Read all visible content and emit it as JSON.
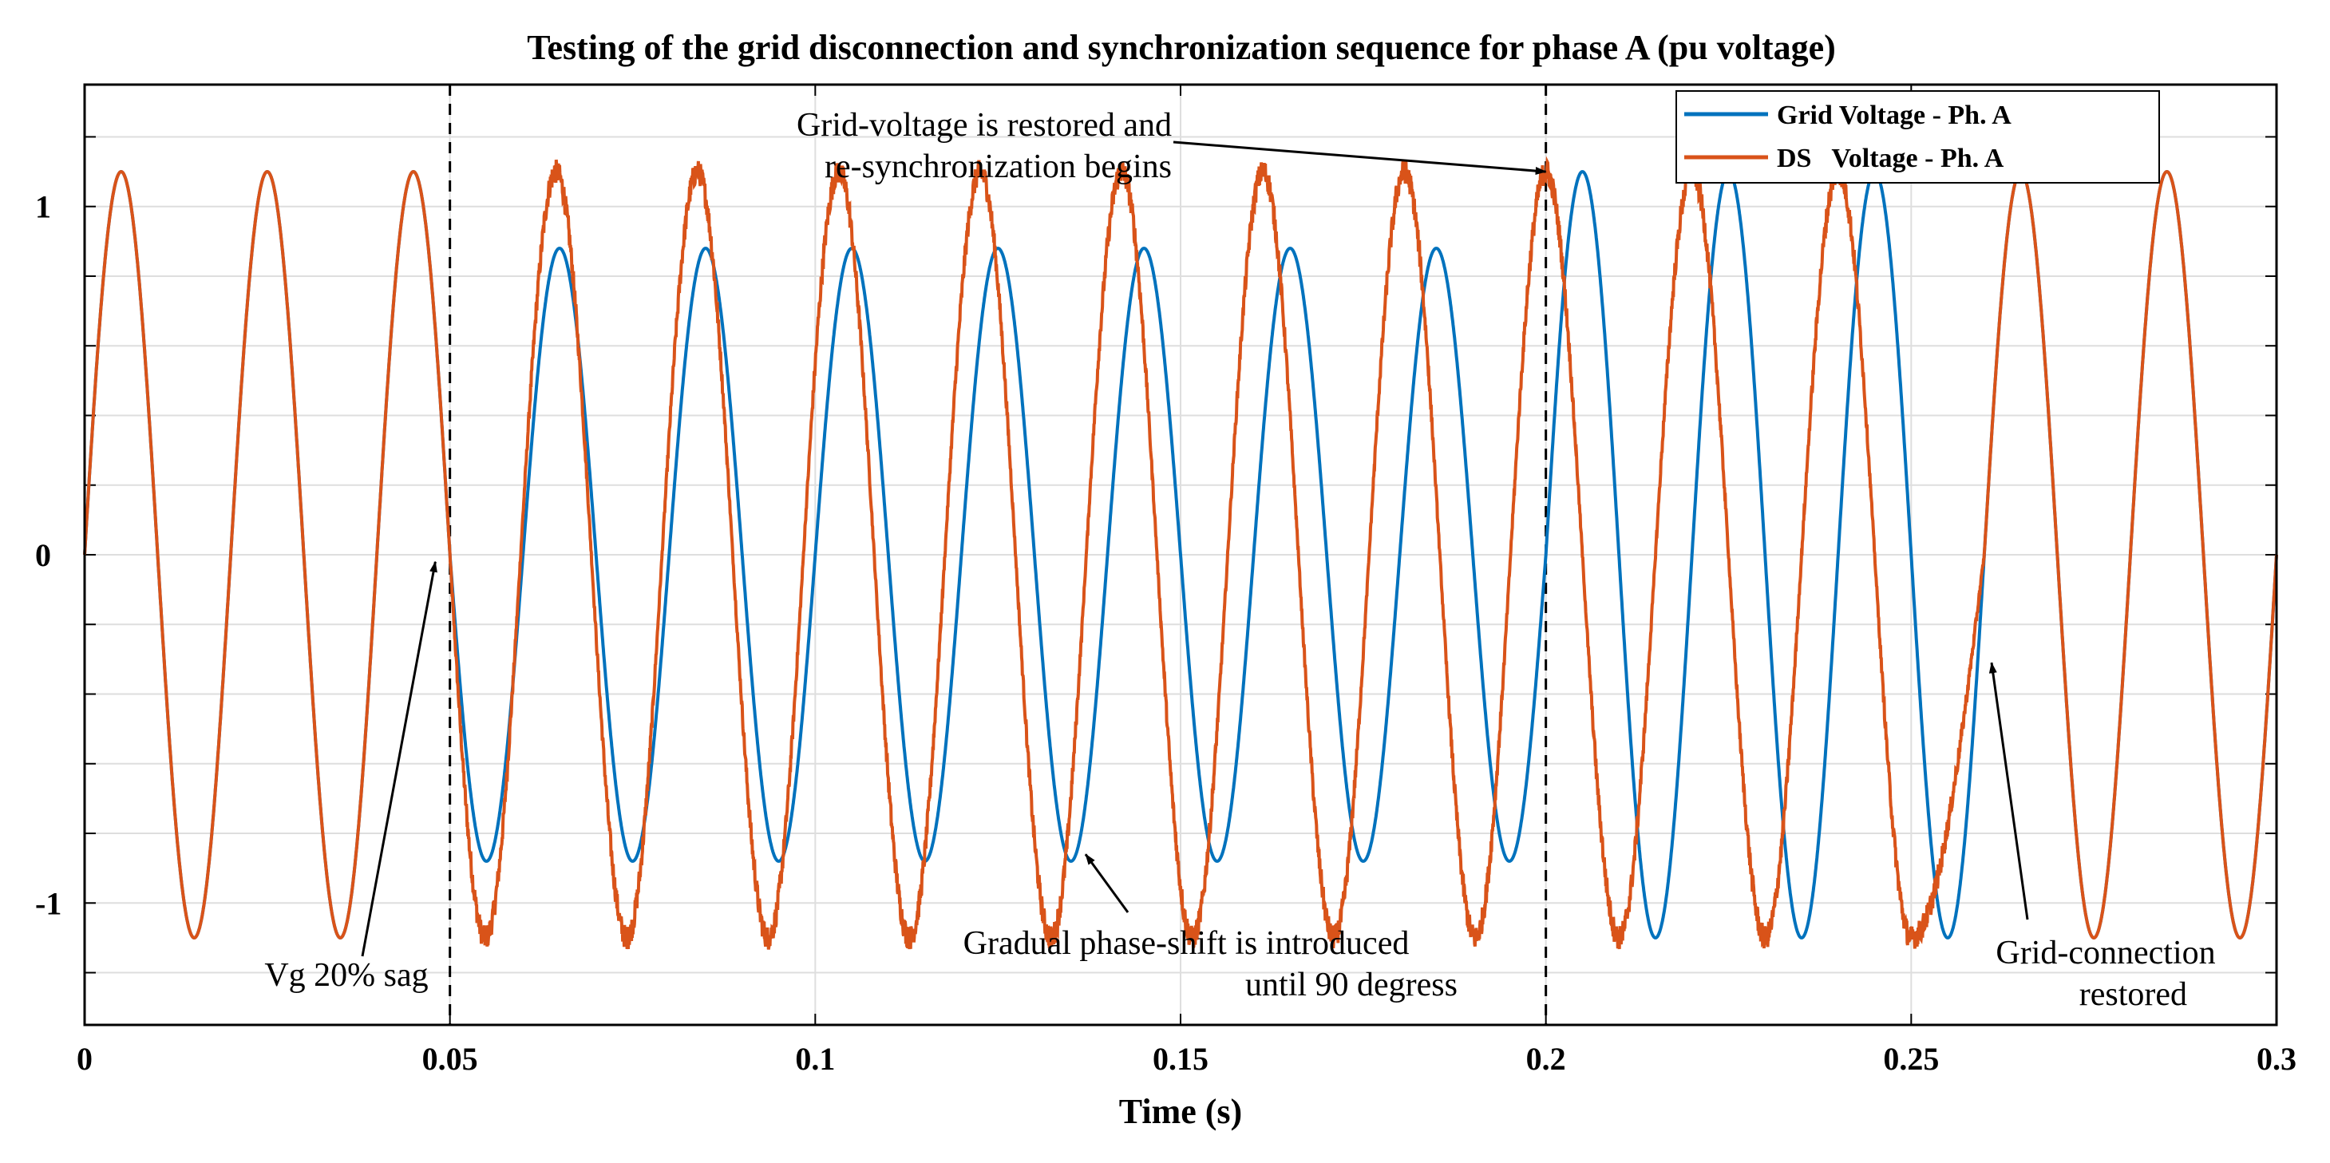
{
  "chart_data": {
    "type": "line",
    "title": "Testing of the grid disconnection and synchronization sequence for phase A (pu voltage)",
    "xlabel": "Time (s)",
    "ylabel": "",
    "xlim": [
      0,
      0.3
    ],
    "ylim": [
      -1.35,
      1.35
    ],
    "grid": true,
    "x_ticks": [
      0,
      0.05,
      0.1,
      0.15,
      0.2,
      0.25,
      0.3
    ],
    "x_tick_labels": [
      "0",
      "0.05",
      "0.1",
      "0.15",
      "0.2",
      "0.25",
      "0.3"
    ],
    "y_ticks": [
      -1,
      0,
      1
    ],
    "y_tick_labels": [
      "-1",
      "0",
      "1"
    ],
    "y_gridlines": [
      -1.2,
      -1,
      -0.8,
      -0.6,
      -0.4,
      -0.2,
      0,
      0.2,
      0.4,
      0.6,
      0.8,
      1,
      1.2
    ],
    "legend_position": "top-right",
    "series": [
      {
        "name": "Grid Voltage - Ph. A",
        "color": "#0072BD",
        "model": "sine",
        "frequency_hz": 50,
        "segments": [
          {
            "t_start": 0,
            "t_end": 0.05,
            "amplitude": 1.1,
            "phase_shift_deg": 0
          },
          {
            "t_start": 0.05,
            "t_end": 0.2,
            "amplitude": 0.88,
            "phase_shift_deg": 0
          },
          {
            "t_start": 0.2,
            "t_end": 0.3,
            "amplitude": 1.1,
            "phase_shift_deg": 0
          }
        ]
      },
      {
        "name": "DS   Voltage - Ph. A",
        "color": "#D95319",
        "model": "sine",
        "frequency_hz": 50,
        "amplitude": 1.1,
        "phase_shift_profile_deg": [
          {
            "t": 0,
            "shift": 0
          },
          {
            "t": 0.05,
            "shift": 0
          },
          {
            "t": 0.2,
            "shift": 90
          },
          {
            "t": 0.25,
            "shift": 90
          },
          {
            "t": 0.26,
            "shift": 0
          },
          {
            "t": 0.3,
            "shift": 0
          }
        ],
        "noise_amplitude": 0.025,
        "noise_window": [
          0.05,
          0.26
        ]
      }
    ],
    "event_markers": [
      0.05,
      0.2
    ],
    "annotations": [
      {
        "lines": [
          "Vg 20% sag"
        ],
        "arrow_to": [
          0.048,
          -0.02
        ]
      },
      {
        "lines": [
          "Grid-voltage is restored and",
          "re-synchronization begins"
        ],
        "arrow_to": [
          0.2,
          1.1
        ]
      },
      {
        "lines": [
          "Gradual phase-shift is introduced",
          "until 90 degress"
        ],
        "arrow_to": [
          0.137,
          -0.86
        ]
      },
      {
        "lines": [
          "Grid-connection",
          "restored"
        ],
        "arrow_to": [
          0.261,
          -0.31
        ]
      }
    ]
  }
}
